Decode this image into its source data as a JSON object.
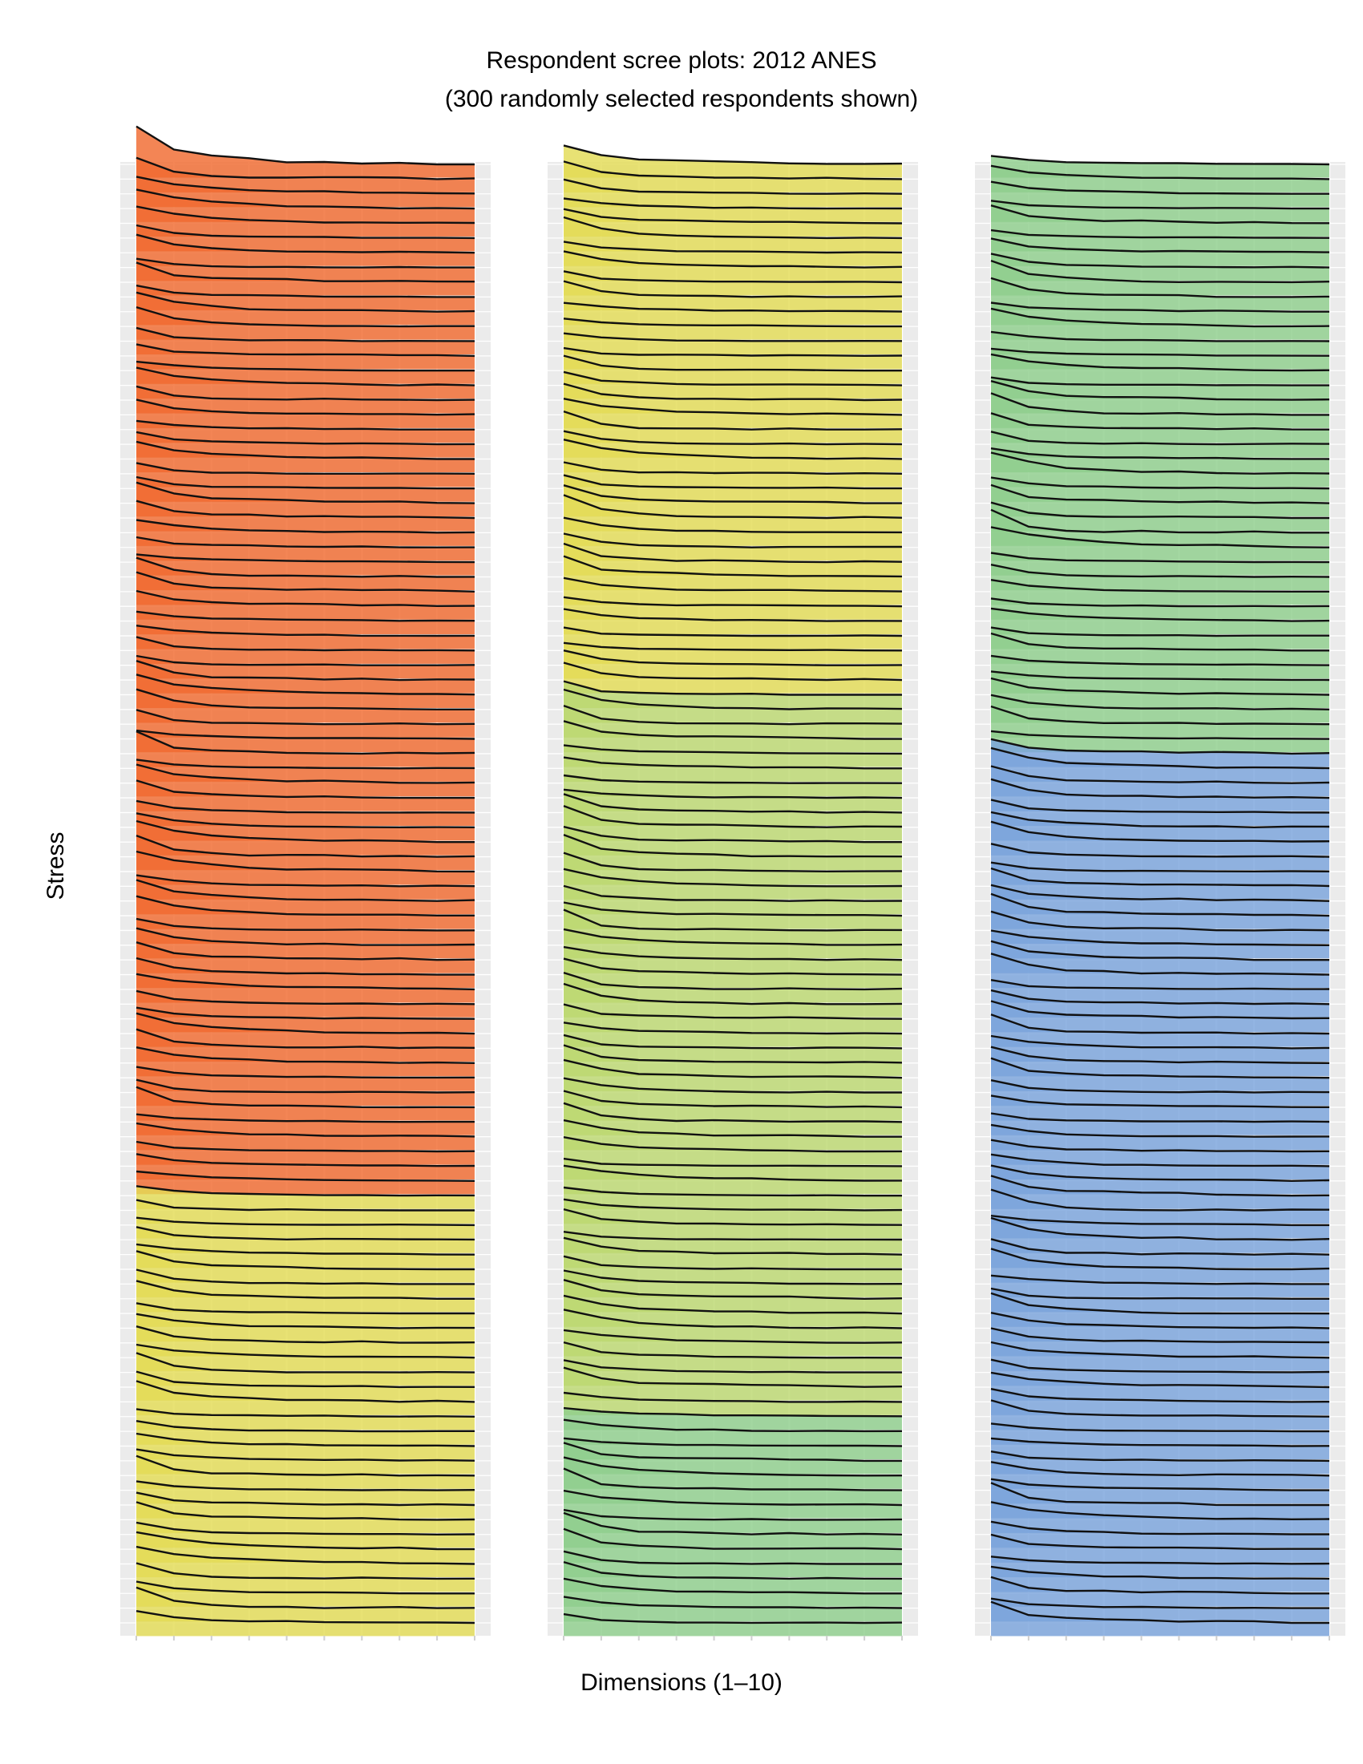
{
  "chart_data": {
    "type": "area",
    "title": "Respondent scree plots: 2012 ANES",
    "subtitle": "(300 randomly selected respondents shown)",
    "xlabel": "Dimensions (1–10)",
    "ylabel": "Stress",
    "x": [
      1,
      2,
      3,
      4,
      5,
      6,
      7,
      8,
      9,
      10
    ],
    "grid": true,
    "panels": [
      {
        "respondents": 100,
        "groups": [
          {
            "color": "#f06a2f",
            "count": 70
          },
          {
            "color": "#e3dc55",
            "count": 30
          }
        ]
      },
      {
        "respondents": 100,
        "groups": [
          {
            "color": "#e3dc55",
            "count": 36
          },
          {
            "color": "#bcd870",
            "count": 49
          },
          {
            "color": "#8fce8c",
            "count": 15
          }
        ]
      },
      {
        "respondents": 100,
        "groups": [
          {
            "color": "#8fce8c",
            "count": 40
          },
          {
            "color": "#7aa3dc",
            "count": 60
          }
        ]
      }
    ]
  }
}
